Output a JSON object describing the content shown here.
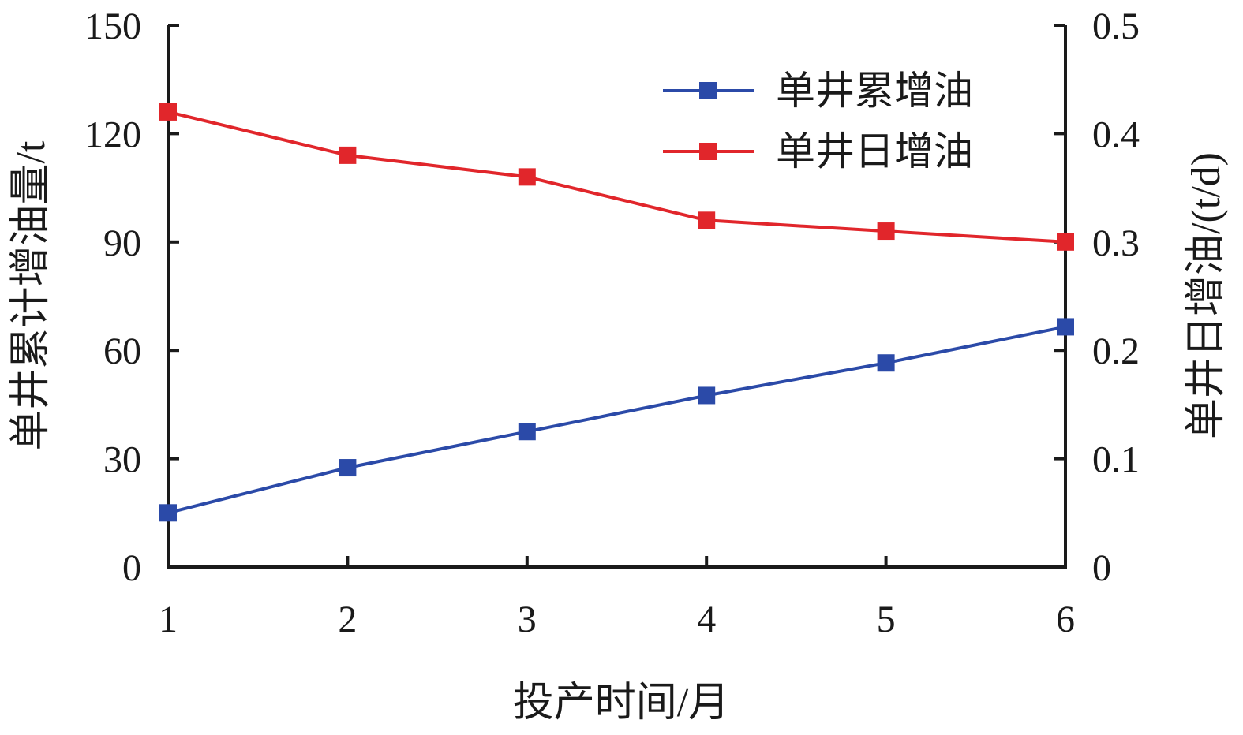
{
  "chart_data": {
    "type": "line",
    "x": [
      1,
      2,
      3,
      4,
      5,
      6
    ],
    "xlabel": "投产时间/月",
    "ylabel_left": "单井累计增油量/t",
    "ylabel_right": "单井日增油/(t/d)",
    "xlim": [
      1,
      6
    ],
    "ylim_left": [
      0,
      150
    ],
    "ylim_right": [
      0,
      0.5
    ],
    "yticks_left": [
      0,
      30,
      60,
      90,
      120,
      150
    ],
    "yticks_right": [
      "0",
      "0.1",
      "0.2",
      "0.3",
      "0.4",
      "0.5"
    ],
    "xticks": [
      "1",
      "2",
      "3",
      "4",
      "5",
      "6"
    ],
    "grid": false,
    "legend_position": "top-right",
    "series": [
      {
        "name": "单井累增油",
        "axis": "left",
        "color": "#2b4aa8",
        "values": [
          15,
          27.5,
          37.5,
          47.5,
          56.5,
          66.5
        ]
      },
      {
        "name": "单井日增油",
        "axis": "right",
        "color": "#e1262b",
        "values": [
          0.42,
          0.38,
          0.36,
          0.32,
          0.31,
          0.3
        ]
      }
    ]
  }
}
